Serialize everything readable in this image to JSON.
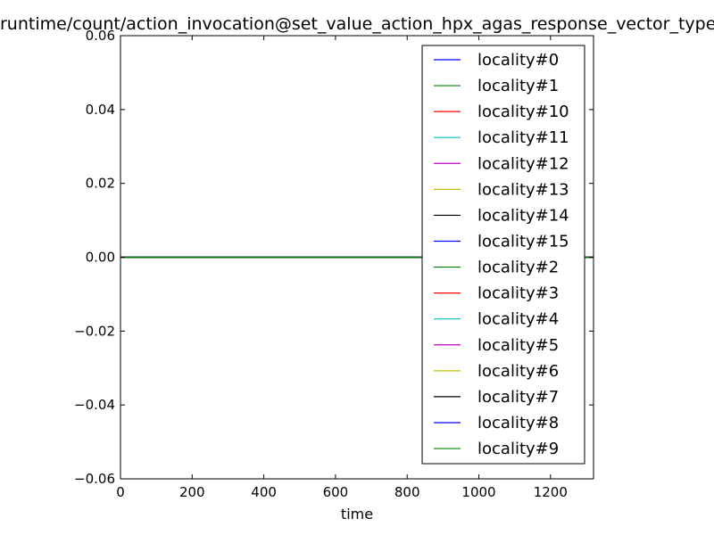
{
  "chart_data": {
    "type": "line",
    "title": "/runtime/count/action_invocation@set_value_action_hpx_agas_response_vector_type",
    "xlabel": "time",
    "ylabel": "",
    "xlim": [
      0,
      1320
    ],
    "ylim": [
      -0.06,
      0.06
    ],
    "xticks": [
      0,
      200,
      400,
      600,
      800,
      1000,
      1200
    ],
    "xtick_labels": [
      "0",
      "200",
      "400",
      "600",
      "800",
      "1000",
      "1200"
    ],
    "yticks": [
      -0.06,
      -0.04,
      -0.02,
      0.0,
      0.02,
      0.04,
      0.06
    ],
    "ytick_labels": [
      "−0.06",
      "−0.04",
      "−0.02",
      "0.00",
      "0.02",
      "0.04",
      "0.06"
    ],
    "grid": false,
    "legend_position": "upper-right",
    "series": [
      {
        "name": "locality#0",
        "color": "#0000ff",
        "x": [
          0,
          1320
        ],
        "y": [
          0,
          0
        ]
      },
      {
        "name": "locality#1",
        "color": "#008000",
        "x": [
          0,
          1320
        ],
        "y": [
          0,
          0
        ]
      },
      {
        "name": "locality#10",
        "color": "#ff0000",
        "x": [
          0,
          1320
        ],
        "y": [
          0,
          0
        ]
      },
      {
        "name": "locality#11",
        "color": "#00bfbf",
        "x": [
          0,
          1320
        ],
        "y": [
          0,
          0
        ]
      },
      {
        "name": "locality#12",
        "color": "#bf00bf",
        "x": [
          0,
          1320
        ],
        "y": [
          0,
          0
        ]
      },
      {
        "name": "locality#13",
        "color": "#bfbf00",
        "x": [
          0,
          1320
        ],
        "y": [
          0,
          0
        ]
      },
      {
        "name": "locality#14",
        "color": "#000000",
        "x": [
          0,
          1320
        ],
        "y": [
          0,
          0
        ]
      },
      {
        "name": "locality#15",
        "color": "#0000ff",
        "x": [
          0,
          1320
        ],
        "y": [
          0,
          0
        ]
      },
      {
        "name": "locality#2",
        "color": "#008000",
        "x": [
          0,
          1320
        ],
        "y": [
          0,
          0
        ]
      },
      {
        "name": "locality#3",
        "color": "#ff0000",
        "x": [
          0,
          1320
        ],
        "y": [
          0,
          0
        ]
      },
      {
        "name": "locality#4",
        "color": "#00bfbf",
        "x": [
          0,
          1320
        ],
        "y": [
          0,
          0
        ]
      },
      {
        "name": "locality#5",
        "color": "#bf00bf",
        "x": [
          0,
          1320
        ],
        "y": [
          0,
          0
        ]
      },
      {
        "name": "locality#6",
        "color": "#bfbf00",
        "x": [
          0,
          1320
        ],
        "y": [
          0,
          0
        ]
      },
      {
        "name": "locality#7",
        "color": "#000000",
        "x": [
          0,
          1320
        ],
        "y": [
          0,
          0
        ]
      },
      {
        "name": "locality#8",
        "color": "#0000ff",
        "x": [
          0,
          1320
        ],
        "y": [
          0,
          0
        ]
      },
      {
        "name": "locality#9",
        "color": "#008000",
        "x": [
          0,
          1320
        ],
        "y": [
          0,
          0
        ]
      }
    ]
  }
}
